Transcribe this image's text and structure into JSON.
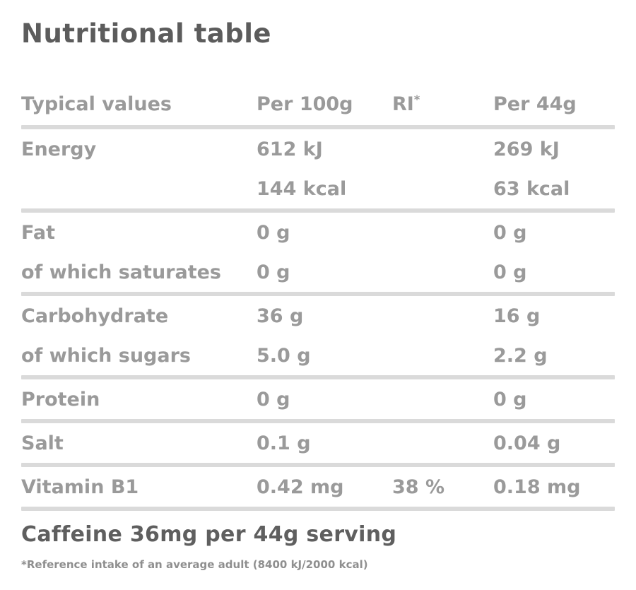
{
  "title": "Nutritional table",
  "colors": {
    "title_text": "#5c5c5c",
    "table_text": "#9a9a9a",
    "divider": "#dadada",
    "caffeine_text": "#5f5f5f",
    "background": "#ffffff"
  },
  "header": {
    "col_label": "Typical values",
    "col_per100": "Per 100g",
    "col_ri": "RI",
    "col_ri_sup": "*",
    "col_per44": "Per 44g"
  },
  "rows": [
    {
      "label": "Energy",
      "per100": "612 kJ",
      "ri": "",
      "per44": "269 kJ"
    },
    {
      "label": "",
      "per100": "144 kcal",
      "ri": "",
      "per44": "63 kcal"
    },
    {
      "label": "Fat",
      "per100": "0 g",
      "ri": "",
      "per44": "0 g"
    },
    {
      "label": "of which saturates",
      "per100": "0 g",
      "ri": "",
      "per44": "0 g"
    },
    {
      "label": "Carbohydrate",
      "per100": "36 g",
      "ri": "",
      "per44": "16 g"
    },
    {
      "label": "of which sugars",
      "per100": "5.0 g",
      "ri": "",
      "per44": "2.2 g"
    },
    {
      "label": "Protein",
      "per100": "0 g",
      "ri": "",
      "per44": "0 g"
    },
    {
      "label": "Salt",
      "per100": "0.1 g",
      "ri": "",
      "per44": "0.04 g"
    },
    {
      "label": "Vitamin B1",
      "per100": "0.42 mg",
      "ri": "38 %",
      "per44": "0.18 mg"
    }
  ],
  "caffeine_note": "Caffeine 36mg per 44g serving",
  "footnote": "*Reference intake of an average adult (8400 kJ/2000 kcal)"
}
